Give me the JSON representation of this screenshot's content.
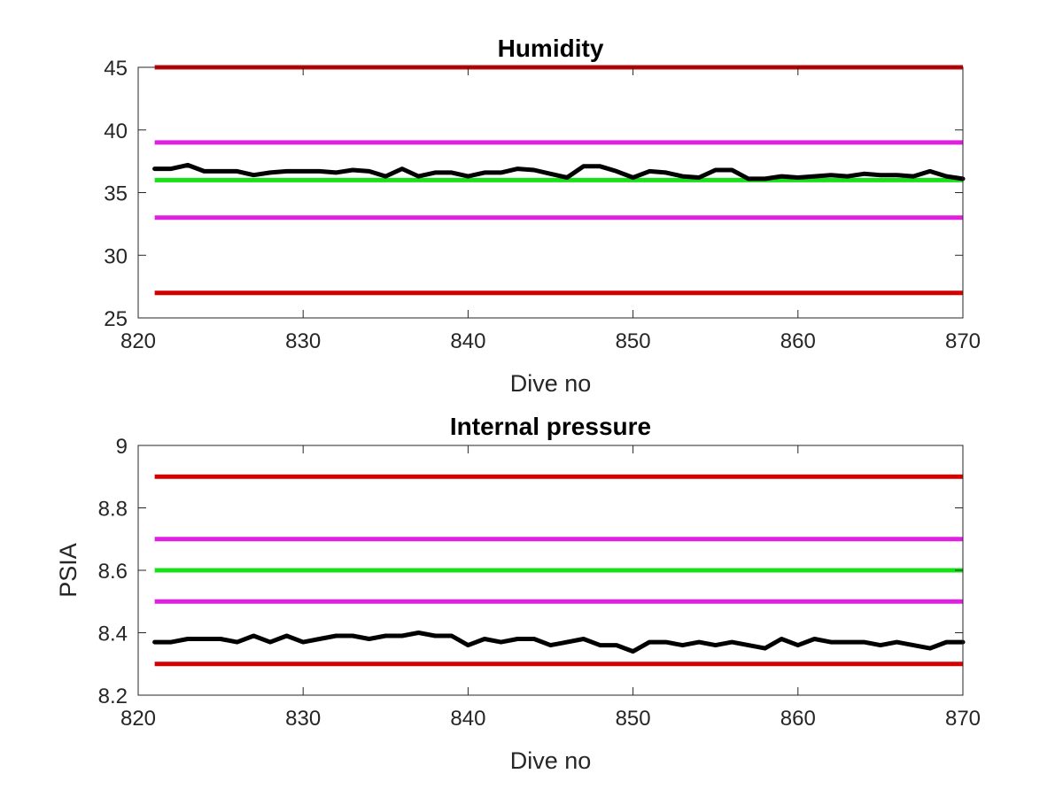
{
  "chart_data": [
    {
      "type": "line",
      "title": "Humidity",
      "xlabel": "Dive no",
      "ylabel": "",
      "xlim": [
        820,
        870
      ],
      "ylim": [
        25,
        45
      ],
      "xticks": [
        820,
        830,
        840,
        850,
        860,
        870
      ],
      "xtick_labels": [
        "820",
        "830",
        "840",
        "850",
        "860",
        "870"
      ],
      "yticks": [
        25,
        30,
        35,
        40,
        45
      ],
      "ytick_labels": [
        "25",
        "30",
        "35",
        "40",
        "45"
      ],
      "grid": false,
      "reference_lines": [
        {
          "y": 45,
          "color": "#d40000",
          "x": [
            821,
            870
          ]
        },
        {
          "y": 39,
          "color": "#e020e0",
          "x": [
            821,
            870
          ]
        },
        {
          "y": 36,
          "color": "#18e018",
          "x": [
            821,
            870
          ]
        },
        {
          "y": 33,
          "color": "#e020e0",
          "x": [
            821,
            870
          ]
        },
        {
          "y": 27,
          "color": "#d40000",
          "x": [
            821,
            870
          ]
        }
      ],
      "series": [
        {
          "color": "#000000",
          "x": [
            821,
            822,
            823,
            824,
            825,
            826,
            827,
            828,
            829,
            830,
            831,
            832,
            833,
            834,
            835,
            836,
            837,
            838,
            839,
            840,
            841,
            842,
            843,
            844,
            845,
            846,
            847,
            848,
            849,
            850,
            851,
            852,
            853,
            854,
            855,
            856,
            857,
            858,
            859,
            860,
            861,
            862,
            863,
            864,
            865,
            866,
            867,
            868,
            869,
            870
          ],
          "y": [
            36.9,
            36.9,
            37.2,
            36.7,
            36.7,
            36.7,
            36.4,
            36.6,
            36.7,
            36.7,
            36.7,
            36.6,
            36.8,
            36.7,
            36.3,
            36.9,
            36.3,
            36.6,
            36.6,
            36.3,
            36.6,
            36.6,
            36.9,
            36.8,
            36.5,
            36.2,
            37.1,
            37.1,
            36.7,
            36.2,
            36.7,
            36.6,
            36.3,
            36.2,
            36.8,
            36.8,
            36.1,
            36.1,
            36.3,
            36.2,
            36.3,
            36.4,
            36.3,
            36.5,
            36.4,
            36.4,
            36.3,
            36.7,
            36.3,
            36.1
          ]
        }
      ]
    },
    {
      "type": "line",
      "title": "Internal pressure",
      "xlabel": "Dive no",
      "ylabel": "PSIA",
      "xlim": [
        820,
        870
      ],
      "ylim": [
        8.2,
        9
      ],
      "xticks": [
        820,
        830,
        840,
        850,
        860,
        870
      ],
      "xtick_labels": [
        "820",
        "830",
        "840",
        "850",
        "860",
        "870"
      ],
      "yticks": [
        8.2,
        8.4,
        8.6,
        8.8,
        9
      ],
      "ytick_labels": [
        "8.2",
        "8.4",
        "8.6",
        "8.8",
        "9"
      ],
      "grid": false,
      "reference_lines": [
        {
          "y": 8.9,
          "color": "#d40000",
          "x": [
            821,
            870
          ]
        },
        {
          "y": 8.7,
          "color": "#e020e0",
          "x": [
            821,
            870
          ]
        },
        {
          "y": 8.6,
          "color": "#18e018",
          "x": [
            821,
            870
          ]
        },
        {
          "y": 8.5,
          "color": "#e020e0",
          "x": [
            821,
            870
          ]
        },
        {
          "y": 8.3,
          "color": "#d40000",
          "x": [
            821,
            870
          ]
        }
      ],
      "series": [
        {
          "color": "#000000",
          "x": [
            821,
            822,
            823,
            824,
            825,
            826,
            827,
            828,
            829,
            830,
            831,
            832,
            833,
            834,
            835,
            836,
            837,
            838,
            839,
            840,
            841,
            842,
            843,
            844,
            845,
            846,
            847,
            848,
            849,
            850,
            851,
            852,
            853,
            854,
            855,
            856,
            857,
            858,
            859,
            860,
            861,
            862,
            863,
            864,
            865,
            866,
            867,
            868,
            869,
            870
          ],
          "y": [
            8.37,
            8.37,
            8.38,
            8.38,
            8.38,
            8.37,
            8.39,
            8.37,
            8.39,
            8.37,
            8.38,
            8.39,
            8.39,
            8.38,
            8.39,
            8.39,
            8.4,
            8.39,
            8.39,
            8.36,
            8.38,
            8.37,
            8.38,
            8.38,
            8.36,
            8.37,
            8.38,
            8.36,
            8.36,
            8.34,
            8.37,
            8.37,
            8.36,
            8.37,
            8.36,
            8.37,
            8.36,
            8.35,
            8.38,
            8.36,
            8.38,
            8.37,
            8.37,
            8.37,
            8.36,
            8.37,
            8.36,
            8.35,
            8.37,
            8.37
          ]
        }
      ]
    }
  ]
}
